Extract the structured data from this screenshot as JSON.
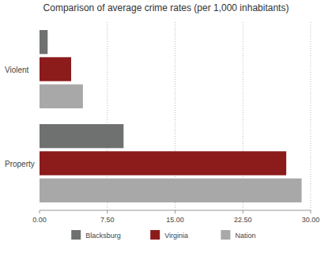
{
  "chart_data": {
    "type": "bar",
    "orientation": "horizontal",
    "title": "Comparison of average crime rates (per 1,000 inhabitants)",
    "categories": [
      "Violent",
      "Property"
    ],
    "series": [
      {
        "name": "Blacksburg",
        "color": "#6e716f",
        "values": [
          0.9,
          9.3
        ]
      },
      {
        "name": "Virginia",
        "color": "#8c1b1b",
        "values": [
          3.5,
          27.3
        ]
      },
      {
        "name": "Nation",
        "color": "#a8a8a8",
        "values": [
          4.8,
          29.0
        ]
      }
    ],
    "xlim": [
      0,
      30
    ],
    "xticks": [
      {
        "value": 0,
        "label": "0.00"
      },
      {
        "value": 7.5,
        "label": "7.50"
      },
      {
        "value": 15,
        "label": "15.00"
      },
      {
        "value": 22.5,
        "label": "22.50"
      },
      {
        "value": 30,
        "label": "30.00"
      }
    ],
    "grid": true,
    "legend": "bottom"
  }
}
